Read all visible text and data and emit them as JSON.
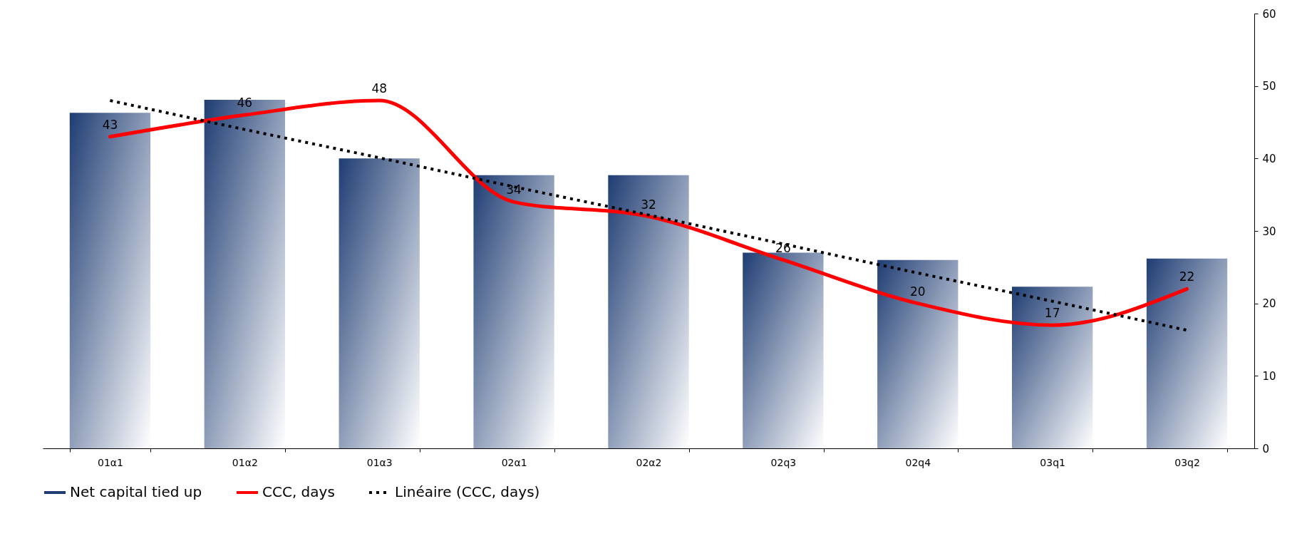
{
  "chart_data": {
    "type": "bar",
    "categories": [
      "01α1",
      "01α2",
      "01α3",
      "02α1",
      "02α2",
      "02q3",
      "02q4",
      "03q1",
      "03q2"
    ],
    "series": [
      {
        "name": "Net capital tied up",
        "color": "#1f3d73",
        "values": [
          46.3,
          48.1,
          40.0,
          37.7,
          37.7,
          27.0,
          26.0,
          22.3,
          26.2
        ]
      },
      {
        "name": "CCC, days",
        "type": "line",
        "color": "#ff0000",
        "values": [
          43,
          46,
          48,
          34,
          32,
          26,
          20,
          17,
          22
        ],
        "data_labels": true
      },
      {
        "name": "Linéaire (CCC, days)",
        "type": "line",
        "color": "#000000",
        "line_style": "dotted",
        "values": [
          48.0,
          44.0,
          40.1,
          36.1,
          32.2,
          28.2,
          24.2,
          20.3,
          16.3
        ]
      }
    ],
    "ylim": [
      0,
      60
    ],
    "yticks": [
      0,
      10,
      20,
      30,
      40,
      50,
      60
    ],
    "grid": false,
    "legend": "bottom"
  }
}
